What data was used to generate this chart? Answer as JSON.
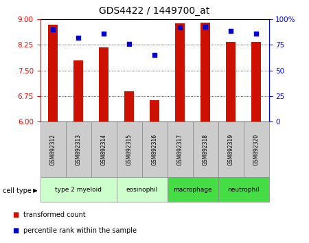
{
  "title": "GDS4422 / 1449700_at",
  "samples": [
    "GSM892312",
    "GSM892313",
    "GSM892314",
    "GSM892315",
    "GSM892316",
    "GSM892317",
    "GSM892318",
    "GSM892319",
    "GSM892320"
  ],
  "transformed_count": [
    8.85,
    7.8,
    8.18,
    6.88,
    6.62,
    8.88,
    8.9,
    8.35,
    8.35
  ],
  "percentile_rank": [
    90,
    82,
    86,
    76,
    65,
    92,
    93,
    89,
    86
  ],
  "cell_types": [
    {
      "label": "type 2 myeloid",
      "start": 0,
      "end": 2,
      "color": "#ccffcc"
    },
    {
      "label": "eosinophil",
      "start": 3,
      "end": 4,
      "color": "#ccffcc"
    },
    {
      "label": "macrophage",
      "start": 5,
      "end": 6,
      "color": "#44dd44"
    },
    {
      "label": "neutrophil",
      "start": 7,
      "end": 8,
      "color": "#44dd44"
    }
  ],
  "ylim_left": [
    6,
    9
  ],
  "ylim_right": [
    0,
    100
  ],
  "yticks_left": [
    6,
    6.75,
    7.5,
    8.25,
    9
  ],
  "yticks_right": [
    0,
    25,
    50,
    75,
    100
  ],
  "bar_color": "#cc1100",
  "dot_color": "#0000cc",
  "bar_width": 0.4,
  "dot_size": 18,
  "legend_items": [
    "transformed count",
    "percentile rank within the sample"
  ],
  "sample_box_color": "#cccccc",
  "fig_bg": "#ffffff"
}
